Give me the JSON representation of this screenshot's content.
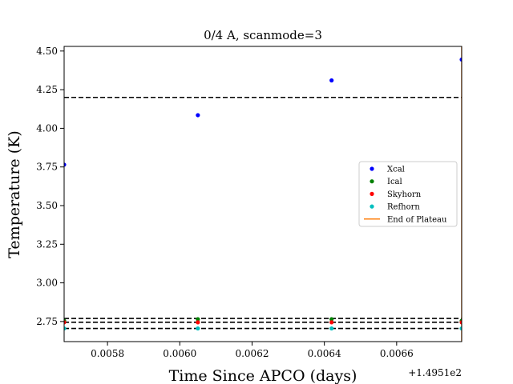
{
  "chart_data": {
    "type": "scatter",
    "title": "0/4 A, scanmode=3",
    "xlabel": "Time Since APCO (days)",
    "ylabel": "Temperature (K)",
    "x_offset_label": "+1.4951e2",
    "xlim": [
      0.00568,
      0.00678
    ],
    "ylim": [
      2.62,
      4.53
    ],
    "xticks": [
      0.0058,
      0.006,
      0.0062,
      0.0064,
      0.0066
    ],
    "xtick_labels": [
      "0.0058",
      "0.0060",
      "0.0062",
      "0.0064",
      "0.0066"
    ],
    "yticks": [
      2.75,
      3.0,
      3.25,
      3.5,
      3.75,
      4.0,
      4.25,
      4.5
    ],
    "ytick_labels": [
      "2.75",
      "3.00",
      "3.25",
      "3.50",
      "3.75",
      "4.00",
      "4.25",
      "4.50"
    ],
    "legend_position": "center-right",
    "series": [
      {
        "name": "Xcal",
        "color": "#0000ff",
        "x": [
          0.00568,
          0.00605,
          0.00642,
          0.00678
        ],
        "y": [
          3.765,
          4.085,
          4.31,
          4.445
        ]
      },
      {
        "name": "Ical",
        "color": "#008000",
        "x": [
          0.00568,
          0.00605,
          0.00642,
          0.00678
        ],
        "y": [
          2.755,
          2.765,
          2.765,
          2.755
        ]
      },
      {
        "name": "Skyhorn",
        "color": "#ff0000",
        "x": [
          0.00568,
          0.00605,
          0.00642,
          0.00678
        ],
        "y": [
          2.745,
          2.745,
          2.745,
          2.745
        ]
      },
      {
        "name": "Refhorn",
        "color": "#00bfbf",
        "x": [
          0.00568,
          0.00605,
          0.00642,
          0.00678
        ],
        "y": [
          2.705,
          2.705,
          2.705,
          2.705
        ]
      }
    ],
    "end_of_plateau": {
      "name": "End of Plateau",
      "color": "#ff7f0e",
      "x": 0.00678
    },
    "hlines": [
      {
        "y": 4.2,
        "color": "#000000",
        "style": "dashed"
      },
      {
        "y": 2.77,
        "color": "#000000",
        "style": "dashed"
      },
      {
        "y": 2.745,
        "color": "#000000",
        "style": "dashed"
      },
      {
        "y": 2.705,
        "color": "#000000",
        "style": "dashed"
      }
    ]
  }
}
